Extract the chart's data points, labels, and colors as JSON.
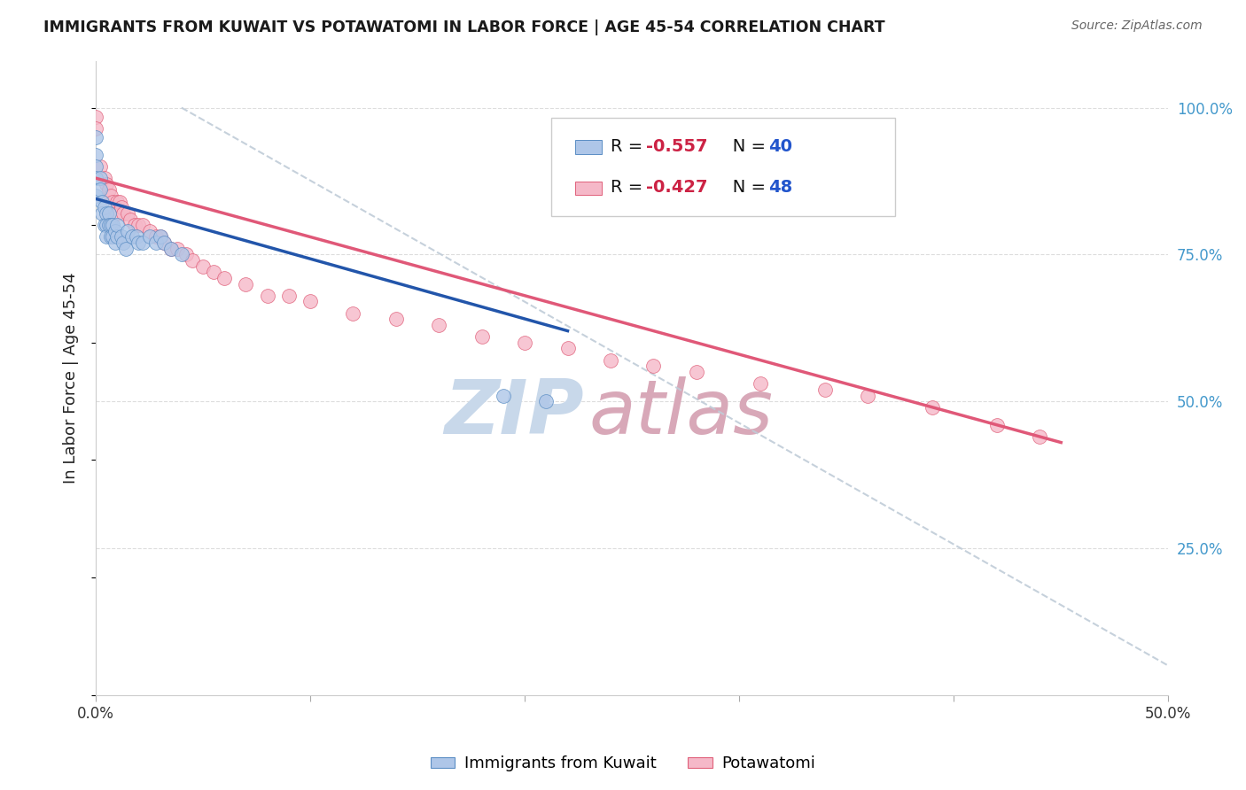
{
  "title": "IMMIGRANTS FROM KUWAIT VS POTAWATOMI IN LABOR FORCE | AGE 45-54 CORRELATION CHART",
  "source": "Source: ZipAtlas.com",
  "ylabel": "In Labor Force | Age 45-54",
  "xlim": [
    0.0,
    0.5
  ],
  "ylim": [
    0.0,
    1.08
  ],
  "kuwait_color": "#aec6e8",
  "kuwait_edge_color": "#5b8ec4",
  "potawatomi_color": "#f5b8c8",
  "potawatomi_edge_color": "#e0607a",
  "kuwait_line_color": "#2255aa",
  "potawatomi_line_color": "#e05878",
  "dashed_line_color": "#c0ccd8",
  "watermark_zip_color": "#c8d8ea",
  "watermark_atlas_color": "#d8a8b8",
  "legend_text_color": "#111111",
  "legend_r_color": "#cc2244",
  "legend_n_color": "#2255cc",
  "background_color": "#ffffff",
  "grid_color": "#dddddd",
  "kuwait_scatter_x": [
    0.0,
    0.0,
    0.0,
    0.0,
    0.0,
    0.002,
    0.002,
    0.003,
    0.003,
    0.004,
    0.004,
    0.005,
    0.005,
    0.005,
    0.006,
    0.006,
    0.007,
    0.007,
    0.008,
    0.008,
    0.009,
    0.009,
    0.01,
    0.01,
    0.012,
    0.013,
    0.014,
    0.015,
    0.017,
    0.019,
    0.02,
    0.022,
    0.025,
    0.028,
    0.03,
    0.032,
    0.035,
    0.04,
    0.19,
    0.21
  ],
  "kuwait_scatter_y": [
    0.95,
    0.92,
    0.9,
    0.88,
    0.85,
    0.88,
    0.86,
    0.84,
    0.82,
    0.83,
    0.8,
    0.82,
    0.8,
    0.78,
    0.82,
    0.8,
    0.8,
    0.78,
    0.8,
    0.78,
    0.79,
    0.77,
    0.78,
    0.8,
    0.78,
    0.77,
    0.76,
    0.79,
    0.78,
    0.78,
    0.77,
    0.77,
    0.78,
    0.77,
    0.78,
    0.77,
    0.76,
    0.75,
    0.51,
    0.5
  ],
  "potawatomi_scatter_x": [
    0.0,
    0.0,
    0.002,
    0.004,
    0.005,
    0.006,
    0.007,
    0.008,
    0.01,
    0.01,
    0.011,
    0.012,
    0.013,
    0.015,
    0.016,
    0.018,
    0.02,
    0.022,
    0.025,
    0.028,
    0.03,
    0.032,
    0.035,
    0.038,
    0.042,
    0.045,
    0.05,
    0.055,
    0.06,
    0.07,
    0.08,
    0.09,
    0.1,
    0.12,
    0.14,
    0.16,
    0.18,
    0.2,
    0.22,
    0.24,
    0.26,
    0.28,
    0.31,
    0.34,
    0.36,
    0.39,
    0.42,
    0.44
  ],
  "potawatomi_scatter_y": [
    0.985,
    0.965,
    0.9,
    0.88,
    0.87,
    0.86,
    0.85,
    0.84,
    0.84,
    0.82,
    0.84,
    0.83,
    0.82,
    0.82,
    0.81,
    0.8,
    0.8,
    0.8,
    0.79,
    0.78,
    0.78,
    0.77,
    0.76,
    0.76,
    0.75,
    0.74,
    0.73,
    0.72,
    0.71,
    0.7,
    0.68,
    0.68,
    0.67,
    0.65,
    0.64,
    0.63,
    0.61,
    0.6,
    0.59,
    0.57,
    0.56,
    0.55,
    0.53,
    0.52,
    0.51,
    0.49,
    0.46,
    0.44
  ],
  "kuwait_line_x0": 0.0,
  "kuwait_line_y0": 0.845,
  "kuwait_line_x1": 0.22,
  "kuwait_line_y1": 0.62,
  "potawatomi_line_x0": 0.0,
  "potawatomi_line_y0": 0.88,
  "potawatomi_line_x1": 0.45,
  "potawatomi_line_y1": 0.43
}
